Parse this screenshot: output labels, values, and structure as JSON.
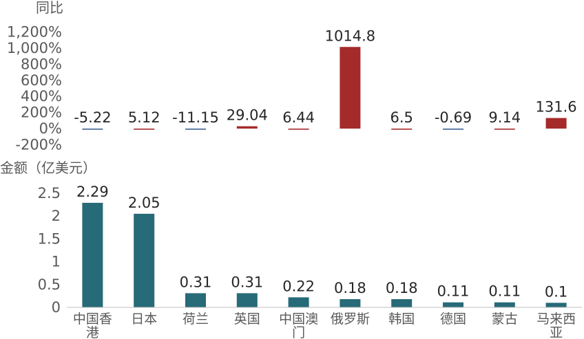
{
  "chart_data": [
    {
      "type": "bar",
      "ylabel": "同比",
      "categories": [
        "中国香港",
        "日本",
        "荷兰",
        "英国",
        "中国澳门",
        "俄罗斯",
        "韩国",
        "德国",
        "蒙古",
        "马来西亚"
      ],
      "values": [
        -5.22,
        5.12,
        -11.15,
        29.04,
        6.44,
        1014.8,
        6.5,
        -0.69,
        9.14,
        131.6
      ],
      "value_labels": [
        "-5.22",
        "5.12",
        "-11.15",
        "29.04",
        "6.44",
        "1014.8",
        "6.5",
        "-0.69",
        "9.14",
        "131.6"
      ],
      "yticks": [
        "1,200%",
        "1,000%",
        "800%",
        "600%",
        "400%",
        "200%",
        "0%",
        "-200%"
      ],
      "ylim": [
        -200,
        1200
      ],
      "colors": {
        "positive": "#a52a2a",
        "negative": "#3a5f8f"
      },
      "grid": false
    },
    {
      "type": "bar",
      "ylabel": "金额（亿美元）",
      "categories": [
        "中国香港",
        "日本",
        "荷兰",
        "英国",
        "中国澳门",
        "俄罗斯",
        "韩国",
        "德国",
        "蒙古",
        "马来西亚"
      ],
      "values": [
        2.29,
        2.05,
        0.31,
        0.31,
        0.22,
        0.18,
        0.18,
        0.11,
        0.11,
        0.1
      ],
      "value_labels": [
        "2.29",
        "2.05",
        "0.31",
        "0.31",
        "0.22",
        "0.18",
        "0.18",
        "0.11",
        "0.11",
        "0.1"
      ],
      "yticks": [
        "2.5",
        "2",
        "1.5",
        "1",
        "0.5",
        "0"
      ],
      "ylim": [
        0,
        2.5
      ],
      "color": "#276a78",
      "grid": false
    }
  ]
}
